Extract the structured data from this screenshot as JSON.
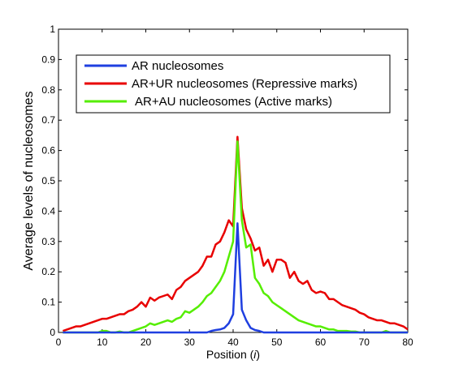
{
  "chart_data": {
    "type": "line",
    "title": "",
    "xlabel": "Position (",
    "xlabel_var": "i",
    "xlabel_close": ")",
    "ylabel": "Average levels of nucleosomes",
    "xlim": [
      0,
      80
    ],
    "ylim": [
      0,
      1
    ],
    "xticks": [
      0,
      10,
      20,
      30,
      40,
      50,
      60,
      70,
      80
    ],
    "yticks": [
      0,
      0.1,
      0.2,
      0.3,
      0.4,
      0.5,
      0.6,
      0.7,
      0.8,
      0.9,
      1
    ],
    "grid": false,
    "legend_position": "top-left",
    "x": [
      1,
      2,
      3,
      4,
      5,
      6,
      7,
      8,
      9,
      10,
      11,
      12,
      13,
      14,
      15,
      16,
      17,
      18,
      19,
      20,
      21,
      22,
      23,
      24,
      25,
      26,
      27,
      28,
      29,
      30,
      31,
      32,
      33,
      34,
      35,
      36,
      37,
      38,
      39,
      40,
      41,
      42,
      43,
      44,
      45,
      46,
      47,
      48,
      49,
      50,
      51,
      52,
      53,
      54,
      55,
      56,
      57,
      58,
      59,
      60,
      61,
      62,
      63,
      64,
      65,
      66,
      67,
      68,
      69,
      70,
      71,
      72,
      73,
      74,
      75,
      76,
      77,
      78,
      79,
      80
    ],
    "series": [
      {
        "name": "AR nucleosomes",
        "color": "#1f3fe0",
        "values": [
          0,
          0,
          0,
          0,
          0,
          0,
          0,
          0,
          0,
          0,
          0,
          0,
          0,
          0,
          0,
          0,
          0,
          0,
          0,
          0,
          0,
          0,
          0,
          0,
          0,
          0,
          0,
          0,
          0,
          0,
          0,
          0,
          0,
          0,
          0.005,
          0.008,
          0.01,
          0.015,
          0.03,
          0.06,
          0.36,
          0.075,
          0.04,
          0.015,
          0.008,
          0.005,
          0,
          0,
          0,
          0,
          0,
          0,
          0,
          0,
          0,
          0,
          0,
          0,
          0,
          0,
          0,
          0,
          0,
          0,
          0,
          0,
          0,
          0,
          0,
          0,
          0,
          0,
          0,
          0,
          0,
          0,
          0,
          0,
          0,
          0
        ]
      },
      {
        "name": "AR+UR nucleosomes (Repressive marks)",
        "color": "#e80000",
        "values": [
          0.005,
          0.01,
          0.015,
          0.02,
          0.02,
          0.025,
          0.03,
          0.035,
          0.04,
          0.045,
          0.045,
          0.05,
          0.055,
          0.06,
          0.06,
          0.07,
          0.075,
          0.085,
          0.1,
          0.085,
          0.115,
          0.105,
          0.115,
          0.12,
          0.125,
          0.11,
          0.14,
          0.15,
          0.17,
          0.18,
          0.19,
          0.2,
          0.22,
          0.25,
          0.25,
          0.29,
          0.3,
          0.33,
          0.37,
          0.35,
          0.645,
          0.41,
          0.34,
          0.31,
          0.27,
          0.28,
          0.22,
          0.24,
          0.2,
          0.24,
          0.24,
          0.23,
          0.18,
          0.2,
          0.17,
          0.16,
          0.17,
          0.14,
          0.13,
          0.135,
          0.13,
          0.11,
          0.11,
          0.1,
          0.09,
          0.085,
          0.08,
          0.075,
          0.065,
          0.06,
          0.05,
          0.045,
          0.04,
          0.04,
          0.035,
          0.03,
          0.03,
          0.025,
          0.02,
          0.01
        ]
      },
      {
        "name": "AR+AU nucleosomes (Active marks)",
        "color": "#55ee00",
        "values": [
          0,
          0,
          0,
          0,
          0,
          0,
          0,
          0,
          0,
          0.005,
          0.005,
          0,
          0,
          0.003,
          0,
          0,
          0.005,
          0.01,
          0.015,
          0.02,
          0.03,
          0.025,
          0.03,
          0.035,
          0.04,
          0.035,
          0.045,
          0.05,
          0.07,
          0.065,
          0.075,
          0.085,
          0.1,
          0.12,
          0.13,
          0.15,
          0.17,
          0.2,
          0.25,
          0.3,
          0.63,
          0.37,
          0.28,
          0.29,
          0.18,
          0.16,
          0.13,
          0.12,
          0.1,
          0.09,
          0.08,
          0.07,
          0.06,
          0.05,
          0.04,
          0.035,
          0.03,
          0.025,
          0.02,
          0.02,
          0.015,
          0.01,
          0.01,
          0.005,
          0.005,
          0.005,
          0.003,
          0.003,
          0,
          0,
          0,
          0,
          0,
          0,
          0.005,
          0,
          0,
          0,
          0,
          0
        ]
      }
    ]
  }
}
